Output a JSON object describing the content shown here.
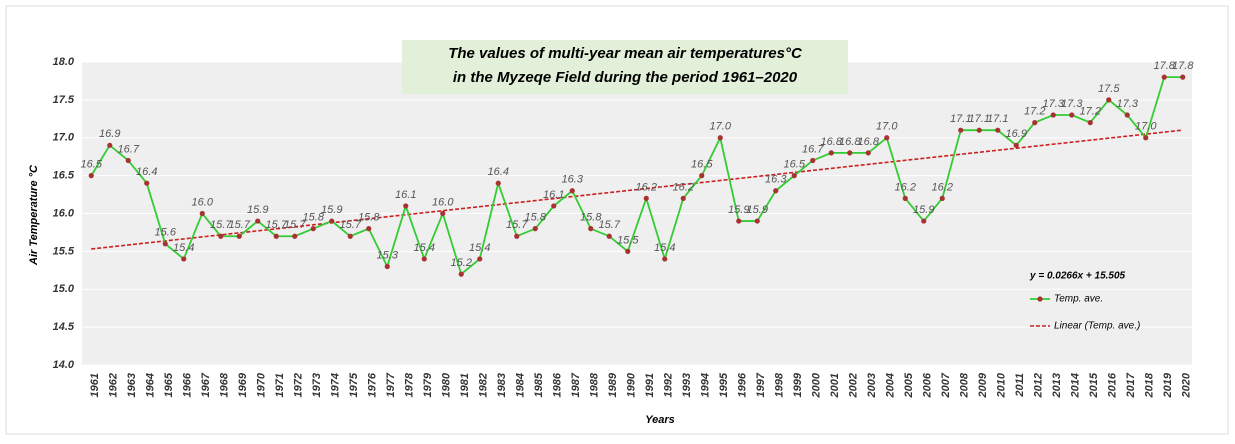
{
  "chart_data": {
    "type": "line",
    "title": "The values of multi-year mean air temperatures°C in the Myzeqe Field during the period 1961–2020",
    "xlabel": "Years",
    "ylabel": "Air Temperature °C",
    "categories": [
      "1961",
      "1962",
      "1963",
      "1964",
      "1965",
      "1966",
      "1967",
      "1968",
      "1969",
      "1970",
      "1971",
      "1972",
      "1973",
      "1974",
      "1975",
      "1976",
      "1977",
      "1978",
      "1979",
      "1980",
      "1981",
      "1982",
      "1983",
      "1984",
      "1985",
      "1986",
      "1987",
      "1988",
      "1989",
      "1990",
      "1991",
      "1992",
      "1993",
      "1994",
      "1995",
      "1996",
      "1997",
      "1998",
      "1999",
      "2000",
      "2001",
      "2002",
      "2003",
      "2004",
      "2005",
      "2006",
      "2007",
      "2008",
      "2009",
      "2010",
      "2011",
      "2012",
      "2013",
      "2014",
      "2015",
      "2016",
      "2017",
      "2018",
      "2019",
      "2020"
    ],
    "series": [
      {
        "name": "Temp. ave.",
        "color": "#33cc33",
        "marker_color": "#a83232",
        "values": [
          16.5,
          16.9,
          16.7,
          16.4,
          15.6,
          15.4,
          16.0,
          15.7,
          15.7,
          15.9,
          15.7,
          15.7,
          15.8,
          15.9,
          15.7,
          15.8,
          15.3,
          16.1,
          15.4,
          16.0,
          15.2,
          15.4,
          16.4,
          15.7,
          15.8,
          16.1,
          16.3,
          15.8,
          15.7,
          15.5,
          16.2,
          15.4,
          16.2,
          16.5,
          17.0,
          15.9,
          15.9,
          16.3,
          16.5,
          16.7,
          16.8,
          16.8,
          16.8,
          17.0,
          16.2,
          15.9,
          16.2,
          17.1,
          17.1,
          17.1,
          16.9,
          17.2,
          17.3,
          17.3,
          17.2,
          17.5,
          17.3,
          17.0,
          17.8,
          17.8
        ],
        "value_labels": [
          "16.5",
          "16.9",
          "16.7",
          "16.4",
          "15.6",
          "15.4",
          "16.0",
          "15.7",
          "15.7",
          "15.9",
          "15.7",
          "15.7",
          "15.8",
          "15.9",
          "15.7",
          "15.8",
          "15.3",
          "16.1",
          "15.4",
          "16.0",
          "15.2",
          "15.4",
          "16.4",
          "15.7",
          "15.8",
          "16.1",
          "16.3",
          "15.8",
          "15.7",
          "15.5",
          "16.2",
          "15.4",
          "16.2",
          "16.5",
          "17.0",
          "15.9",
          "15.9",
          "16.3",
          "16.5",
          "16.7",
          "16.8",
          "16.8",
          "16.8",
          "17.0",
          "16.2",
          "15.9",
          "16.2",
          "17.1",
          "17.1",
          "17.1",
          "16.9",
          "17.2",
          "17.3",
          "17.3",
          "17.2",
          "17.5",
          "17.3",
          "17.0",
          "17.8",
          "17.8"
        ]
      }
    ],
    "trendline": {
      "name": "Linear (Temp. ave.)",
      "color": "#cc1f1f",
      "slope": 0.0266,
      "intercept": 15.505,
      "equation": "y = 0.0266x + 15.505"
    },
    "ylim": [
      14.0,
      18.0
    ],
    "yticks": [
      {
        "value": 14.0,
        "label": "14.0"
      },
      {
        "value": 14.5,
        "label": "14.5"
      },
      {
        "value": 15.0,
        "label": "15.0"
      },
      {
        "value": 15.5,
        "label": "15.5"
      },
      {
        "value": 16.0,
        "label": "16.0"
      },
      {
        "value": 16.5,
        "label": "16.5"
      },
      {
        "value": 17.0,
        "label": "17.0"
      },
      {
        "value": 17.5,
        "label": "17.5"
      },
      {
        "value": 18.0,
        "label": "18.0"
      }
    ],
    "grid": true,
    "legend": "lower right"
  }
}
